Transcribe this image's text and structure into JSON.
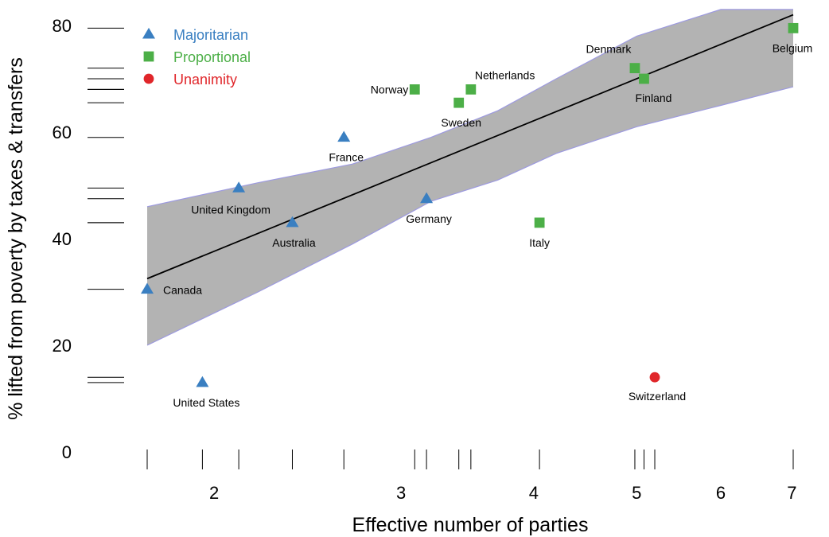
{
  "chart_data": {
    "type": "scatter",
    "title": "",
    "xlabel": "Effective number of parties",
    "ylabel": "% lifted from poverty by taxes & transfers",
    "x_scale": "log",
    "xlim": [
      1.68,
      7.2
    ],
    "ylim": [
      0,
      83
    ],
    "x_ticks": [
      2,
      3,
      4,
      5,
      6,
      7
    ],
    "y_ticks": [
      0,
      20,
      40,
      60,
      80
    ],
    "grid": false,
    "legend_placement": "top-left",
    "series": [
      {
        "name": "Majoritarian",
        "marker": "triangle",
        "color": "#3a7fc1",
        "points": [
          {
            "label": "Canada",
            "x": 1.73,
            "y": 30.5
          },
          {
            "label": "United States",
            "x": 1.95,
            "y": 13
          },
          {
            "label": "United Kingdom",
            "x": 2.11,
            "y": 49.5
          },
          {
            "label": "Australia",
            "x": 2.37,
            "y": 43
          },
          {
            "label": "France",
            "x": 2.65,
            "y": 59
          },
          {
            "label": "Germany",
            "x": 3.17,
            "y": 47.5
          }
        ]
      },
      {
        "name": "Proportional",
        "marker": "square",
        "color": "#4caf47",
        "points": [
          {
            "label": "Norway",
            "x": 3.09,
            "y": 68
          },
          {
            "label": "Sweden",
            "x": 3.4,
            "y": 65.5
          },
          {
            "label": "Netherlands",
            "x": 3.49,
            "y": 68
          },
          {
            "label": "Italy",
            "x": 4.05,
            "y": 43
          },
          {
            "label": "Denmark",
            "x": 4.98,
            "y": 72
          },
          {
            "label": "Finland",
            "x": 5.08,
            "y": 70
          },
          {
            "label": "Belgium",
            "x": 7.02,
            "y": 79.5
          }
        ]
      },
      {
        "name": "Unanimity",
        "marker": "circle",
        "color": "#e0262a",
        "points": [
          {
            "label": "Switzerland",
            "x": 5.2,
            "y": 14
          }
        ]
      }
    ],
    "fit_line": [
      {
        "x": 1.73,
        "y": 32.5
      },
      {
        "x": 7.02,
        "y": 82
      }
    ],
    "confidence_band": {
      "x": [
        1.73,
        2.2,
        2.7,
        3.2,
        3.7,
        4.2,
        5.0,
        6.0,
        7.02
      ],
      "upper": [
        46,
        50.5,
        54,
        59,
        64,
        70,
        78,
        83,
        83
      ],
      "lower": [
        20,
        30,
        39,
        47,
        51,
        56,
        61,
        65,
        68.5
      ]
    },
    "colors": {
      "band_fill": "#b3b3b3",
      "band_edge": "#9d9ae0",
      "fit_line": "#000000"
    }
  }
}
